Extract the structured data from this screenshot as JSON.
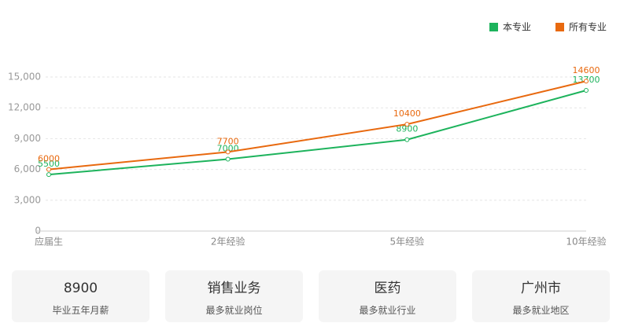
{
  "chart_data": {
    "type": "line",
    "categories": [
      "应届生",
      "2年经验",
      "5年经验",
      "10年经验"
    ],
    "series": [
      {
        "name": "本专业",
        "color": "#1db35c",
        "values": [
          5500,
          7000,
          8900,
          13700
        ]
      },
      {
        "name": "所有专业",
        "color": "#e8690f",
        "values": [
          6000,
          7700,
          10400,
          14600
        ]
      }
    ],
    "ylim": [
      0,
      15000
    ],
    "yticks": [
      0,
      {
        "value": 3000,
        "label": "3,000"
      },
      {
        "value": 6000,
        "label": "6,000"
      },
      {
        "value": 9000,
        "label": "9,000"
      },
      {
        "value": 12000,
        "label": "12,000"
      },
      {
        "value": 15000,
        "label": "15,000"
      }
    ],
    "grid": true
  },
  "cards": [
    {
      "value": "8900",
      "label": "毕业五年月薪"
    },
    {
      "value": "销售业务",
      "label": "最多就业岗位"
    },
    {
      "value": "医药",
      "label": "最多就业行业"
    },
    {
      "value": "广州市",
      "label": "最多就业地区"
    }
  ]
}
